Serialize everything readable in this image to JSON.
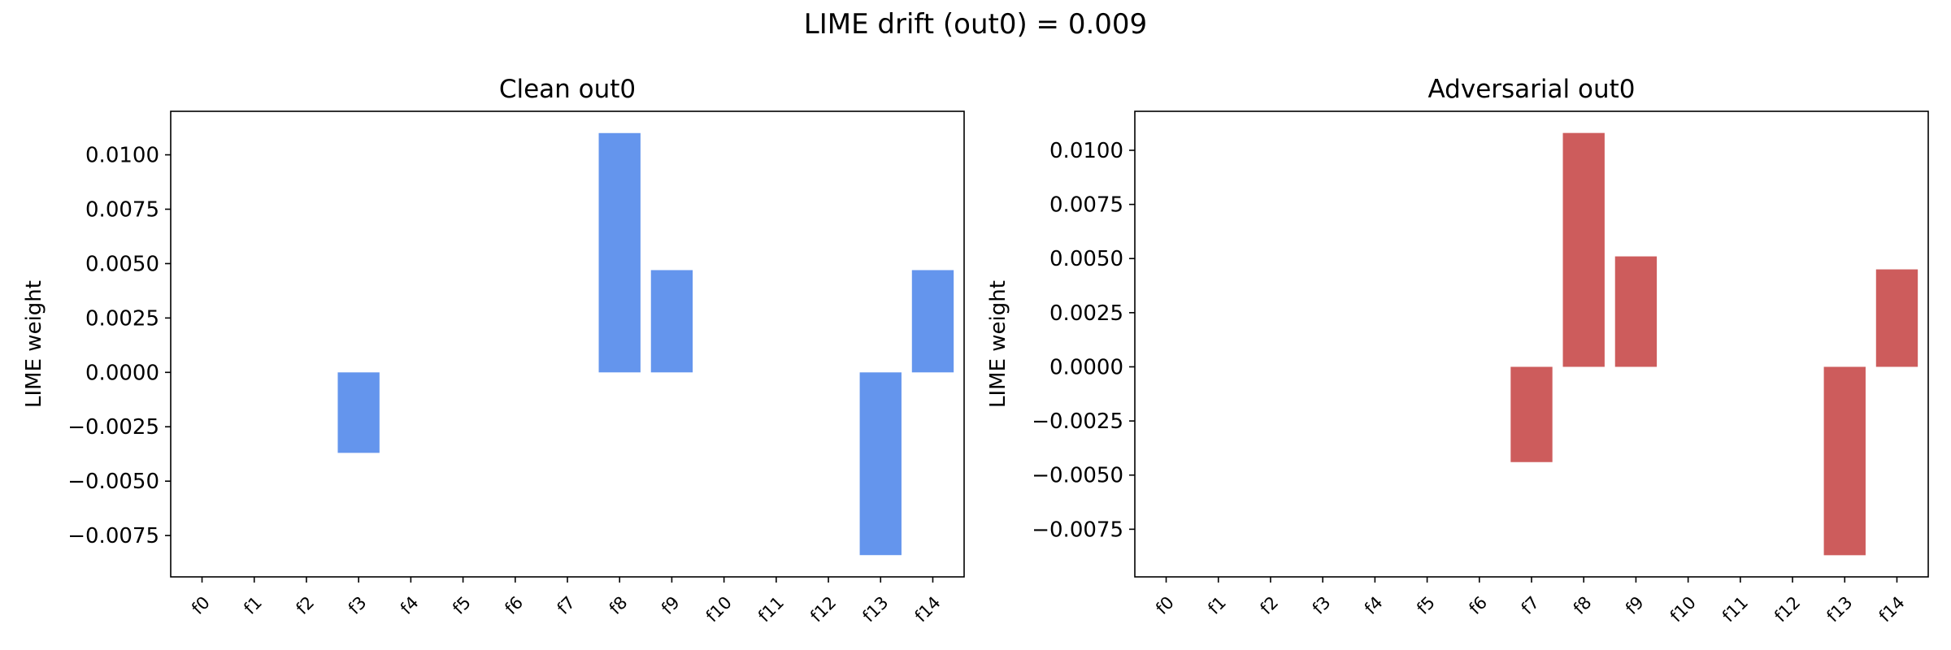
{
  "figure": {
    "suptitle": "LIME drift (out0) = 0.009"
  },
  "chart_data": [
    {
      "type": "bar",
      "title": "Clean out0",
      "xlabel": "",
      "ylabel": "LIME weight",
      "categories": [
        "f0",
        "f1",
        "f2",
        "f3",
        "f4",
        "f5",
        "f6",
        "f7",
        "f8",
        "f9",
        "f10",
        "f11",
        "f12",
        "f13",
        "f14"
      ],
      "values": [
        0,
        0,
        0,
        -0.0037,
        0,
        0,
        0,
        0,
        0.011,
        0.0047,
        0,
        0,
        0,
        -0.0084,
        0.0047
      ],
      "ylim": [
        -0.0094,
        0.012
      ],
      "yticks": [
        0.01,
        0.0075,
        0.005,
        0.0025,
        0.0,
        -0.0025,
        -0.005,
        -0.0075
      ],
      "ytick_labels": [
        "0.0100",
        "0.0075",
        "0.0050",
        "0.0025",
        "0.0000",
        "−0.0025",
        "−0.0050",
        "−0.0075"
      ],
      "color": "#6495ED",
      "grid": false
    },
    {
      "type": "bar",
      "title": "Adversarial out0",
      "xlabel": "",
      "ylabel": "LIME weight",
      "categories": [
        "f0",
        "f1",
        "f2",
        "f3",
        "f4",
        "f5",
        "f6",
        "f7",
        "f8",
        "f9",
        "f10",
        "f11",
        "f12",
        "f13",
        "f14"
      ],
      "values": [
        0,
        0,
        0,
        0,
        0,
        0,
        0,
        -0.0044,
        0.0108,
        0.0051,
        0,
        0,
        0,
        -0.0087,
        0.0045
      ],
      "ylim": [
        -0.0097,
        0.0118
      ],
      "yticks": [
        0.01,
        0.0075,
        0.005,
        0.0025,
        0.0,
        -0.0025,
        -0.005,
        -0.0075
      ],
      "ytick_labels": [
        "0.0100",
        "0.0075",
        "0.0050",
        "0.0025",
        "0.0000",
        "−0.0025",
        "−0.0050",
        "−0.0075"
      ],
      "color": "#CD5C5C",
      "grid": false
    }
  ]
}
